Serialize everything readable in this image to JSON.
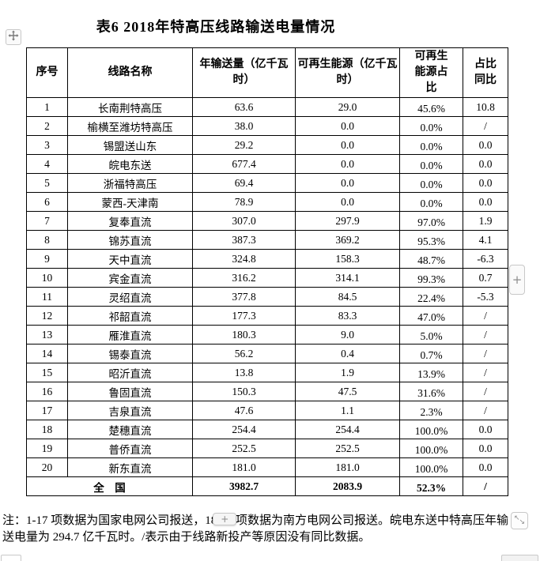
{
  "title": "表6  2018年特高压线路输送电量情况",
  "table": {
    "headers": [
      "序号",
      "线路名称",
      "年输送量（亿千瓦时）",
      "可再生能源（亿千瓦时）",
      "可再生能源占比",
      "占比同比"
    ],
    "rows": [
      [
        "1",
        "长南荆特高压",
        "63.6",
        "29.0",
        "45.6%",
        "10.8"
      ],
      [
        "2",
        "榆横至潍坊特高压",
        "38.0",
        "0.0",
        "0.0%",
        "/"
      ],
      [
        "3",
        "锡盟送山东",
        "29.2",
        "0.0",
        "0.0%",
        "0.0"
      ],
      [
        "4",
        "皖电东送",
        "677.4",
        "0.0",
        "0.0%",
        "0.0"
      ],
      [
        "5",
        "浙福特高压",
        "69.4",
        "0.0",
        "0.0%",
        "0.0"
      ],
      [
        "6",
        "蒙西-天津南",
        "78.9",
        "0.0",
        "0.0%",
        "0.0"
      ],
      [
        "7",
        "复奉直流",
        "307.0",
        "297.9",
        "97.0%",
        "1.9"
      ],
      [
        "8",
        "锦苏直流",
        "387.3",
        "369.2",
        "95.3%",
        "4.1"
      ],
      [
        "9",
        "天中直流",
        "324.8",
        "158.3",
        "48.7%",
        "-6.3"
      ],
      [
        "10",
        "宾金直流",
        "316.2",
        "314.1",
        "99.3%",
        "0.7"
      ],
      [
        "11",
        "灵绍直流",
        "377.8",
        "84.5",
        "22.4%",
        "-5.3"
      ],
      [
        "12",
        "祁韶直流",
        "177.3",
        "83.3",
        "47.0%",
        "/"
      ],
      [
        "13",
        "雁淮直流",
        "180.3",
        "9.0",
        "5.0%",
        "/"
      ],
      [
        "14",
        "锡泰直流",
        "56.2",
        "0.4",
        "0.7%",
        "/"
      ],
      [
        "15",
        "昭沂直流",
        "13.8",
        "1.9",
        "13.9%",
        "/"
      ],
      [
        "16",
        "鲁固直流",
        "150.3",
        "47.5",
        "31.6%",
        "/"
      ],
      [
        "17",
        "吉泉直流",
        "47.6",
        "1.1",
        "2.3%",
        "/"
      ],
      [
        "18",
        "楚穗直流",
        "254.4",
        "254.4",
        "100.0%",
        "0.0"
      ],
      [
        "19",
        "普侨直流",
        "252.5",
        "252.5",
        "100.0%",
        "0.0"
      ],
      [
        "20",
        "新东直流",
        "181.0",
        "181.0",
        "100.0%",
        "0.0"
      ]
    ],
    "total_row": {
      "label": "全　国",
      "values": [
        "3982.7",
        "2083.9",
        "52.3%",
        "/"
      ]
    }
  },
  "note": {
    "prefix": "注：1-17 项数据为国家电网公司报送，18",
    "hidden": "-20",
    "suffix": " 项数据为南方电网公司报送。皖电东送中特高压年输送电量为 294.7 亿千瓦时。/表示由于线路新投产等原因没有同比数据。"
  },
  "controls": {
    "move_handle_icon": "move-cross-icon",
    "add_column_label": "+",
    "note_plus_label": "+",
    "resize_icon_nw": "↖",
    "resize_icon_se": "↘"
  },
  "colors": {
    "table_border": "#000000",
    "text": "#000000",
    "background": "#ffffff",
    "control_border": "#c8c8c8",
    "control_bg": "#fafafa",
    "control_glyph": "#8c8c8c"
  }
}
